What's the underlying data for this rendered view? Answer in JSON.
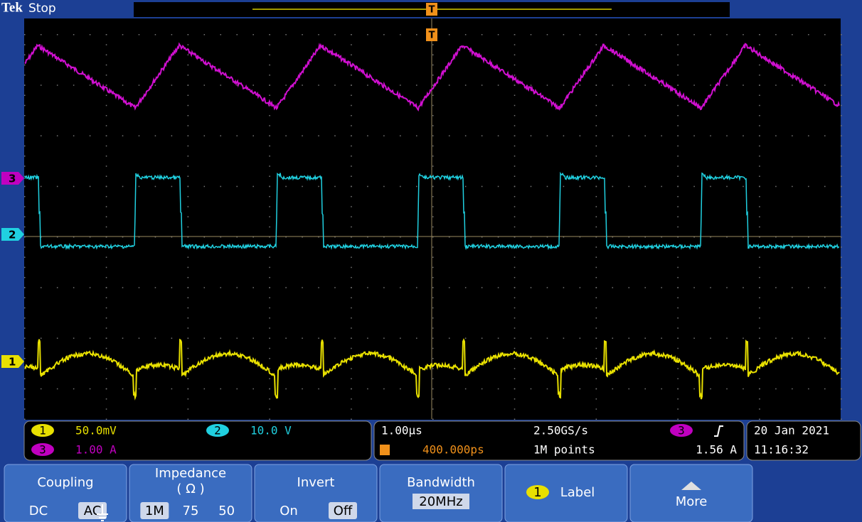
{
  "header": {
    "brand": "Tek",
    "status": "Stop",
    "trigger_marker": "T"
  },
  "channel_markers": [
    "3",
    "2",
    "1"
  ],
  "readout": {
    "ch1": {
      "badge": "1",
      "scale": "50.0mV"
    },
    "ch2": {
      "badge": "2",
      "scale": "10.0 V"
    },
    "ch3": {
      "badge": "3",
      "scale": "1.00 A"
    },
    "time_per_div": "1.00µs",
    "sample_rate": "2.50GS/s",
    "position": "400.000ps",
    "record_length": "1M points",
    "trigger_source": "3",
    "trigger_level": "1.56 A",
    "date": "20 Jan  2021",
    "time": "11:16:32"
  },
  "menu": [
    {
      "title": "Coupling",
      "options": [
        "DC",
        "AC"
      ]
    },
    {
      "title": "Impedance",
      "subtitle": "( Ω )",
      "options": [
        "1M",
        "75",
        "50"
      ]
    },
    {
      "title": "Invert",
      "options": [
        "On",
        "Off"
      ]
    },
    {
      "title": "Bandwidth",
      "value": "20MHz"
    },
    {
      "badge": "1",
      "title": "Label"
    },
    {
      "title": "More"
    }
  ]
}
